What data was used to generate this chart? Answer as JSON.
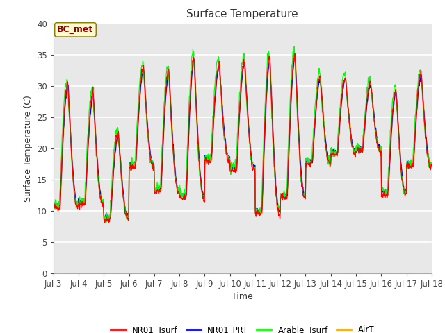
{
  "title": "Surface Temperature",
  "ylabel": "Surface Temperature (C)",
  "xlabel": "Time",
  "ylim": [
    0,
    40
  ],
  "yticks": [
    0,
    5,
    10,
    15,
    20,
    25,
    30,
    35,
    40
  ],
  "x_tick_labels": [
    "Jul 3",
    "Jul 4",
    "Jul 5",
    "Jul 6",
    "Jul 7",
    "Jul 8",
    "Jul 9",
    "Jul 10",
    "Jul 11",
    "Jul 12",
    "Jul 13",
    "Jul 14",
    "Jul 15",
    "Jul 16",
    "Jul 17",
    "Jul 18"
  ],
  "annotation_text": "BC_met",
  "annotation_color": "#8B0000",
  "annotation_bg": "#FFFACD",
  "annotation_edge": "#8B8000",
  "legend_entries": [
    "NR01_Tsurf",
    "NR01_PRT",
    "Arable_Tsurf",
    "AirT"
  ],
  "line_colors": [
    "red",
    "blue",
    "lime",
    "orange"
  ],
  "background_color": "#e8e8e8",
  "grid_color": "white",
  "title_fontsize": 11,
  "label_fontsize": 9,
  "tick_fontsize": 8.5
}
